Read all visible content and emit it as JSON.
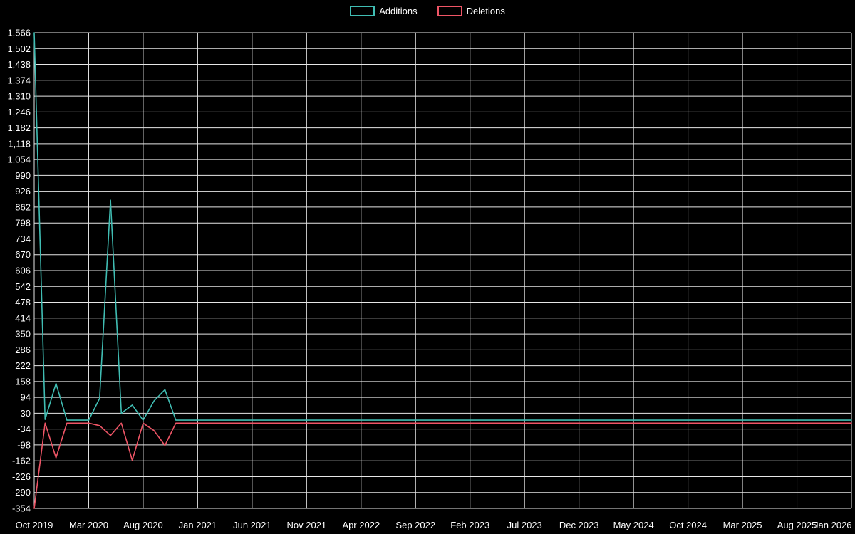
{
  "page": {
    "background_color": "#000000",
    "text_color": "#ffffff",
    "grid_color": "#e6e6e6"
  },
  "legend": {
    "position": "top-center",
    "items": [
      {
        "label": "Additions",
        "color": "#40bdb3"
      },
      {
        "label": "Deletions",
        "color": "#ef5566"
      }
    ]
  },
  "chart_data": {
    "type": "line",
    "xlabel": "",
    "ylabel": "",
    "x_unit": "month",
    "x_start": "Oct 2019",
    "x_end": "Jan 2026",
    "x_points_total": 76,
    "x_tick_every": 5,
    "x_tick_labels": [
      "Oct 2019",
      "Mar 2020",
      "Aug 2020",
      "Jan 2021",
      "Jun 2021",
      "Nov 2021",
      "Apr 2022",
      "Sep 2022",
      "Feb 2023",
      "Jul 2023",
      "Dec 2023",
      "May 2024",
      "Oct 2024",
      "Mar 2025",
      "Aug 2025",
      "Jan 2026"
    ],
    "y_min": -354,
    "y_max": 1566,
    "y_step": 64,
    "y_tick_labels": [
      "1,566",
      "1,502",
      "1,438",
      "1,374",
      "1,310",
      "1,246",
      "1,182",
      "1,118",
      "1,054",
      "990",
      "926",
      "862",
      "798",
      "734",
      "670",
      "606",
      "542",
      "478",
      "414",
      "350",
      "286",
      "222",
      "158",
      "94",
      "30",
      "-34",
      "-98",
      "-162",
      "-226",
      "-290",
      "-354"
    ],
    "grid": true,
    "legend_position": "top-center",
    "series": [
      {
        "name": "Additions",
        "color": "#40bdb3",
        "values": [
          1566,
          5,
          150,
          2,
          2,
          2,
          90,
          890,
          30,
          63,
          2,
          80,
          125,
          2,
          2,
          2,
          2,
          2,
          2,
          2,
          2,
          2,
          2,
          2,
          2,
          2,
          2,
          2,
          2,
          2,
          2,
          2,
          2,
          2,
          2,
          2,
          2,
          2,
          2,
          2,
          2,
          2,
          2,
          2,
          2,
          2,
          2,
          2,
          2,
          2,
          2,
          2,
          2,
          2,
          2,
          2,
          2,
          2,
          2,
          2,
          2,
          2,
          2,
          2,
          2,
          2,
          2,
          2,
          2,
          2,
          2,
          2,
          2,
          2,
          2,
          2
        ]
      },
      {
        "name": "Deletions",
        "color": "#ef5566",
        "values": [
          -354,
          -10,
          -150,
          -10,
          -10,
          -10,
          -20,
          -60,
          -10,
          -160,
          -10,
          -40,
          -100,
          -10,
          -10,
          -10,
          -10,
          -10,
          -10,
          -10,
          -10,
          -10,
          -10,
          -10,
          -10,
          -10,
          -10,
          -10,
          -10,
          -10,
          -10,
          -10,
          -10,
          -10,
          -10,
          -10,
          -10,
          -10,
          -10,
          -10,
          -10,
          -10,
          -10,
          -10,
          -10,
          -10,
          -10,
          -10,
          -10,
          -10,
          -10,
          -10,
          -10,
          -10,
          -10,
          -10,
          -10,
          -10,
          -10,
          -10,
          -10,
          -10,
          -10,
          -10,
          -10,
          -10,
          -10,
          -10,
          -10,
          -10,
          -10,
          -10,
          -10,
          -10,
          -10,
          -10
        ]
      }
    ]
  }
}
